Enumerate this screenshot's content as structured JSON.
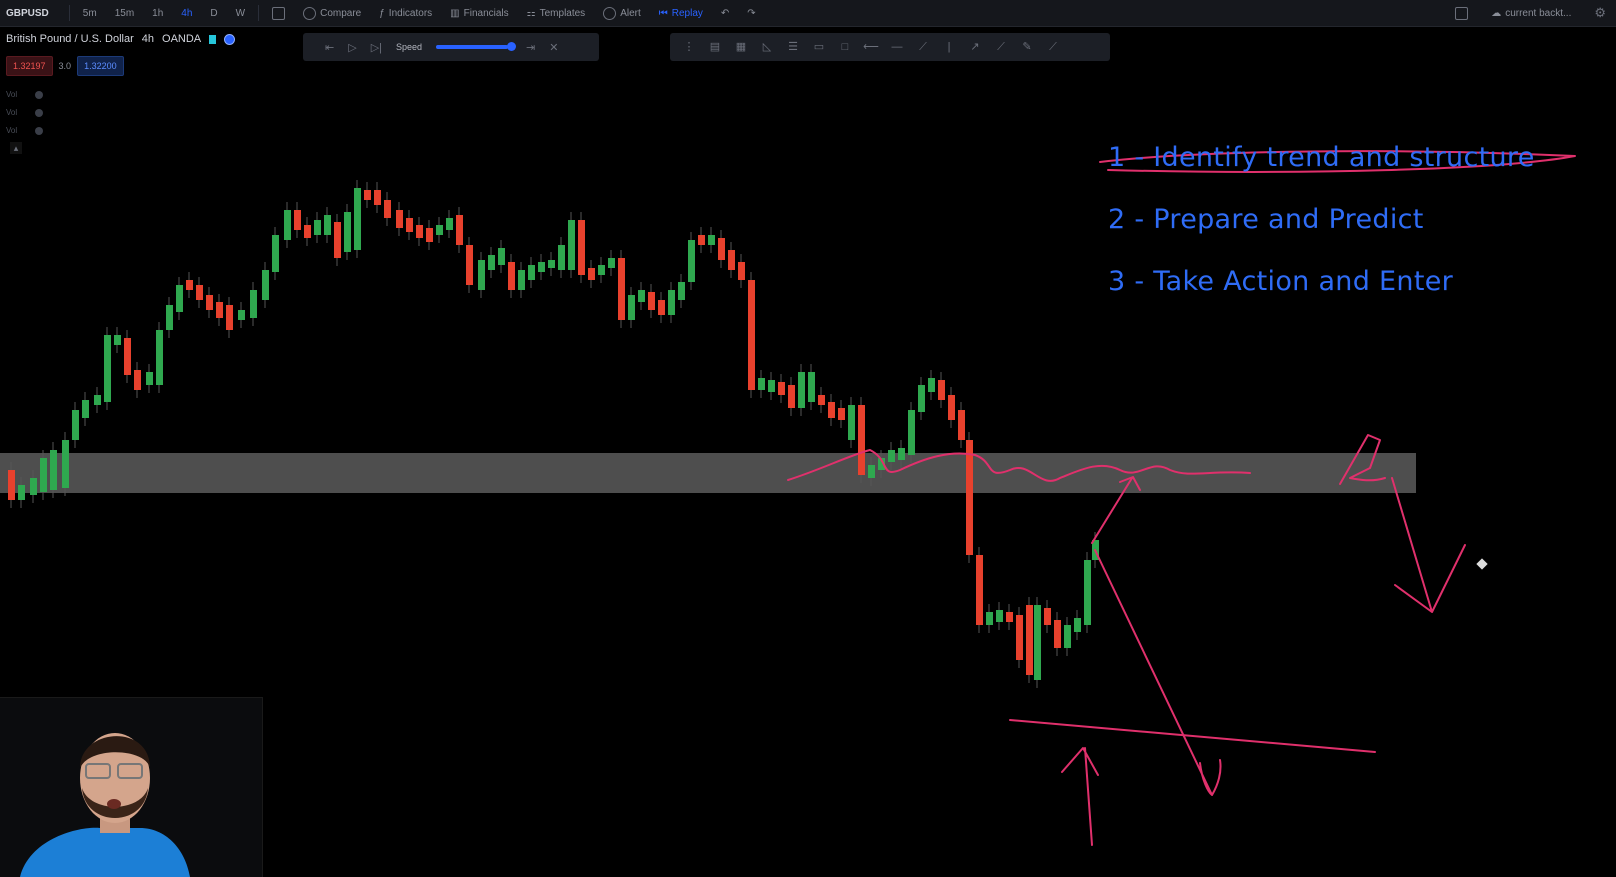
{
  "toolbar": {
    "symbol": "GBPUSD",
    "intervals": [
      "5m",
      "15m",
      "1h",
      "4h",
      "D",
      "W"
    ],
    "active_interval": "4h",
    "compare": "Compare",
    "indicators": "Indicators",
    "financials": "Financials",
    "templates": "Templates",
    "alert": "Alert",
    "replay": "Replay",
    "layout": "current backt..."
  },
  "legend": {
    "title": "British Pound / U.S. Dollar",
    "interval": "4h",
    "exchange": "OANDA"
  },
  "prices": {
    "sell": "1.32197",
    "spread": "3.0",
    "buy": "1.32200"
  },
  "indicator_rows": [
    "Vol",
    "Vol",
    "Vol"
  ],
  "replay_bar": {
    "speed_label": "Speed",
    "speed_level": 0.95
  },
  "annotations": {
    "steps": [
      "1 - Identify trend and structure",
      "2 - Prepare and Predict",
      "3 - Take Action and Enter"
    ]
  },
  "colors": {
    "bull": "#2fa84f",
    "bear": "#e8412d",
    "zone": "#5c5c5c",
    "pen": "#e0306c",
    "step_text": "#2f6cf6"
  }
}
